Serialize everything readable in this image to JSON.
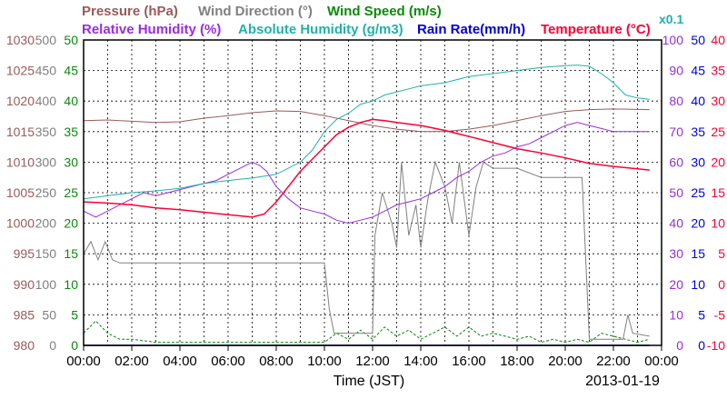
{
  "chart_data": {
    "type": "line",
    "date": "2013-01-19",
    "xlabel": "Time (JST)",
    "x_ticks": [
      "00:00",
      "02:00",
      "04:00",
      "06:00",
      "08:00",
      "10:00",
      "12:00",
      "14:00",
      "16:00",
      "18:00",
      "20:00",
      "22:00",
      "00:00"
    ],
    "grid": true,
    "legend": [
      {
        "key": "pressure",
        "label": "Pressure (hPa)",
        "color": "#9a5a5a"
      },
      {
        "key": "wind_direction",
        "label": "Wind Direction (°)",
        "color": "#808080"
      },
      {
        "key": "wind_speed",
        "label": "Wind Speed (m/s)",
        "color": "#0a8a0a"
      },
      {
        "key": "relative_humidity",
        "label": "Relative Humidity (%)",
        "color": "#9a2ce0"
      },
      {
        "key": "absolute_humidity",
        "label": "Absolute Humidity (g/m3)",
        "color": "#20b2aa"
      },
      {
        "key": "rain_rate",
        "label": "Rain Rate(mm/h)",
        "color": "#0000e0"
      },
      {
        "key": "temperature",
        "label": "Temperature (°C)",
        "color": "#ff0033"
      }
    ],
    "abs_humidity_scale_note": "x0.1",
    "axes": [
      {
        "key": "pressure",
        "ylim": [
          980,
          1030
        ],
        "ticks": [
          "980",
          "985",
          "990",
          "995",
          "1000",
          "1005",
          "1010",
          "1015",
          "1020",
          "1025",
          "1030"
        ]
      },
      {
        "key": "wind_direction",
        "ylim": [
          0,
          500
        ],
        "ticks": [
          "0",
          "50",
          "100",
          "150",
          "200",
          "250",
          "300",
          "350",
          "400",
          "450",
          "500"
        ]
      },
      {
        "key": "wind_speed",
        "ylim": [
          0,
          50
        ],
        "ticks": [
          "0",
          "5",
          "10",
          "15",
          "20",
          "25",
          "30",
          "35",
          "40",
          "45",
          "50"
        ]
      },
      {
        "key": "relative_humidity",
        "ylim": [
          0,
          100
        ],
        "ticks": [
          "0",
          "10",
          "20",
          "30",
          "40",
          "50",
          "60",
          "70",
          "80",
          "90",
          "100"
        ]
      },
      {
        "key": "rain_rate",
        "ylim": [
          0,
          50
        ],
        "ticks": [
          "0",
          "5",
          "10",
          "15",
          "20",
          "25",
          "30",
          "35",
          "40",
          "45",
          "50"
        ]
      },
      {
        "key": "temperature",
        "ylim": [
          -10,
          40
        ],
        "ticks": [
          "-10",
          "-5",
          "0",
          "5",
          "10",
          "15",
          "20",
          "25",
          "30",
          "35",
          "40"
        ]
      }
    ],
    "series": [
      {
        "key": "pressure",
        "name": "Pressure (hPa)",
        "axis": "pressure",
        "x": [
          0,
          1,
          2,
          3,
          4,
          5,
          6,
          7,
          8,
          9,
          10,
          11,
          12,
          13,
          14,
          15,
          16,
          17,
          18,
          19,
          20,
          21,
          22,
          23.5
        ],
        "y": [
          1016.8,
          1016.9,
          1016.7,
          1016.5,
          1016.6,
          1017.2,
          1017.6,
          1018.1,
          1018.4,
          1018.3,
          1017.6,
          1016.8,
          1016.0,
          1015.4,
          1015.0,
          1015.0,
          1015.4,
          1016.0,
          1016.8,
          1017.6,
          1018.3,
          1018.6,
          1018.7,
          1018.6
        ]
      },
      {
        "key": "wind_direction",
        "name": "Wind Direction (°)",
        "axis": "wind_direction",
        "x": [
          0,
          0.3,
          0.6,
          0.9,
          1.2,
          1.5,
          2,
          4,
          6,
          8,
          9,
          10,
          10.2,
          10.4,
          10.6,
          11,
          11.6,
          12,
          12.1,
          12.4,
          12.8,
          13,
          13.2,
          13.5,
          13.8,
          14,
          14.3,
          14.6,
          15,
          15.3,
          15.6,
          16,
          16.3,
          16.6,
          17,
          17.5,
          18,
          19,
          20,
          20.7,
          21,
          21.5,
          22,
          22.4,
          22.6,
          22.8,
          23.5
        ],
        "y": [
          150,
          170,
          140,
          170,
          140,
          135,
          135,
          135,
          135,
          135,
          135,
          135,
          60,
          20,
          20,
          20,
          20,
          20,
          180,
          250,
          200,
          160,
          300,
          180,
          230,
          160,
          240,
          300,
          260,
          200,
          300,
          180,
          260,
          300,
          290,
          290,
          290,
          275,
          275,
          275,
          10,
          10,
          10,
          10,
          50,
          20,
          15
        ]
      },
      {
        "key": "wind_speed",
        "name": "Wind Speed (m/s)",
        "axis": "wind_speed",
        "x": [
          0,
          0.5,
          1,
          1.5,
          2,
          3,
          4,
          5,
          6,
          7,
          8,
          9,
          10,
          10.5,
          11,
          11.5,
          12,
          12.5,
          13,
          13.5,
          14,
          14.5,
          15,
          15.5,
          16,
          16.5,
          17,
          17.5,
          18,
          18.5,
          19,
          19.5,
          20,
          20.5,
          21,
          21.5,
          22,
          22.5,
          23,
          23.5
        ],
        "y": [
          2,
          4,
          2,
          1,
          1,
          0.5,
          0.5,
          0.5,
          0.5,
          0.5,
          0.5,
          0.5,
          0.5,
          2,
          1,
          2.5,
          1,
          3,
          1.5,
          2.5,
          1,
          2,
          3,
          1.5,
          3,
          1.5,
          2,
          1.5,
          1,
          1.5,
          0.5,
          1,
          0.5,
          1,
          0.5,
          2,
          1.5,
          1,
          0.5,
          1
        ]
      },
      {
        "key": "relative_humidity",
        "name": "Relative Humidity (%)",
        "axis": "relative_humidity",
        "x": [
          0,
          0.5,
          1,
          1.5,
          2,
          2.5,
          3,
          3.5,
          4,
          4.5,
          5,
          5.5,
          6,
          6.5,
          7,
          7.3,
          7.6,
          8,
          8.5,
          9,
          9.5,
          10,
          10.5,
          11,
          11.5,
          12,
          12.5,
          13,
          13.5,
          14,
          14.5,
          15,
          15.5,
          16,
          16.5,
          17,
          17.5,
          18,
          18.5,
          19,
          19.5,
          20,
          20.5,
          21,
          21.5,
          22,
          22.5,
          23,
          23.5
        ],
        "y": [
          44,
          42,
          44,
          46,
          48,
          50,
          49,
          50,
          51,
          52,
          53,
          54,
          56,
          58,
          60,
          59,
          57,
          52,
          48,
          45,
          44,
          43,
          41,
          40,
          41,
          42,
          44,
          46,
          47,
          48,
          50,
          52,
          55,
          57,
          60,
          62,
          63,
          65,
          66,
          68,
          70,
          72,
          73,
          72,
          71,
          70,
          70,
          70,
          70
        ]
      },
      {
        "key": "absolute_humidity",
        "name": "Absolute Humidity (g/m3)",
        "axis": "rain_rate",
        "x": [
          0,
          1,
          2,
          3,
          4,
          5,
          6,
          7,
          8,
          9,
          9.5,
          10,
          10.5,
          11,
          11.5,
          12,
          12.5,
          13,
          13.5,
          14,
          15,
          16,
          17,
          18,
          19,
          20,
          20.5,
          21,
          21.5,
          22,
          22.5,
          23,
          23.5
        ],
        "y": [
          24,
          24.5,
          25,
          25.3,
          25.7,
          26.5,
          27,
          27.4,
          28,
          30,
          32,
          35,
          37,
          38,
          39.5,
          40,
          41,
          41.5,
          42,
          42.5,
          43,
          44,
          44.5,
          45,
          45.5,
          45.8,
          45.9,
          45.7,
          44.5,
          43,
          41,
          40.5,
          40.3
        ]
      },
      {
        "key": "rain_rate",
        "name": "Rain Rate(mm/h)",
        "axis": "rain_rate",
        "x": [
          0,
          23.5
        ],
        "y": [
          0,
          0
        ]
      },
      {
        "key": "temperature",
        "name": "Temperature (°C)",
        "axis": "temperature",
        "x": [
          0,
          1,
          2,
          3,
          4,
          5,
          6,
          6.5,
          7,
          7.5,
          8,
          8.5,
          9,
          9.5,
          10,
          10.5,
          11,
          11.5,
          12,
          12.5,
          13,
          14,
          15,
          16,
          17,
          18,
          19,
          20,
          21,
          22,
          23,
          23.5
        ],
        "y": [
          13.5,
          13.3,
          13.0,
          12.5,
          12.2,
          11.8,
          11.4,
          11.2,
          11.0,
          11.5,
          13.5,
          16.0,
          18.5,
          20.5,
          22.5,
          24.5,
          25.7,
          26.5,
          27.0,
          26.8,
          26.5,
          26.0,
          25.2,
          24.2,
          23.2,
          22.2,
          21.5,
          20.7,
          19.8,
          19.3,
          18.9,
          18.7
        ]
      }
    ]
  }
}
